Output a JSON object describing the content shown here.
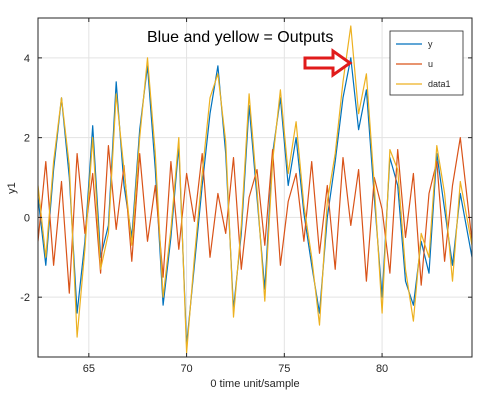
{
  "chart_data": {
    "type": "line",
    "xlabel": "0 time unit/sample",
    "ylabel": "y1",
    "xlim": [
      62.4,
      84.6
    ],
    "ylim": [
      -3.5,
      5.0
    ],
    "xticks": [
      65,
      70,
      75,
      80
    ],
    "yticks": [
      -2,
      0,
      2,
      4
    ],
    "grid": true,
    "legend_position": "top-right",
    "annotation": "Blue and yellow = Outputs",
    "series": [
      {
        "name": "y",
        "color": "#0072bd",
        "x": [
          62.4,
          62.8,
          63.2,
          63.6,
          64.0,
          64.4,
          64.8,
          65.2,
          65.6,
          66.0,
          66.4,
          66.8,
          67.2,
          67.6,
          68.0,
          68.4,
          68.8,
          69.2,
          69.6,
          70.0,
          70.4,
          70.8,
          71.2,
          71.6,
          72.0,
          72.4,
          72.8,
          73.2,
          73.6,
          74.0,
          74.4,
          74.8,
          75.2,
          75.6,
          76.0,
          76.4,
          76.8,
          77.2,
          77.6,
          78.0,
          78.4,
          78.8,
          79.2,
          79.6,
          80.0,
          80.4,
          80.8,
          81.2,
          81.6,
          82.0,
          82.4,
          82.8,
          83.2,
          83.6,
          84.0,
          84.6
        ],
        "values": [
          0.5,
          -1.2,
          1.2,
          3.0,
          1.0,
          -2.4,
          -0.6,
          2.3,
          -1.0,
          -0.2,
          3.4,
          0.8,
          -0.5,
          2.2,
          3.8,
          1.2,
          -2.2,
          -0.5,
          1.8,
          -3.2,
          -1.2,
          0.8,
          2.6,
          3.8,
          1.6,
          -2.3,
          -0.4,
          2.8,
          0.5,
          -1.8,
          1.6,
          3.0,
          0.8,
          2.0,
          0.1,
          -1.2,
          -2.4,
          0.0,
          1.4,
          3.0,
          4.0,
          2.2,
          3.2,
          0.5,
          -2.0,
          1.5,
          0.8,
          -1.6,
          -2.2,
          -0.6,
          -1.4,
          1.6,
          0.2,
          -1.2,
          0.6,
          -1.0
        ]
      },
      {
        "name": "u",
        "color": "#d95319",
        "x": [
          62.4,
          62.8,
          63.2,
          63.6,
          64.0,
          64.4,
          64.8,
          65.2,
          65.6,
          66.0,
          66.4,
          66.8,
          67.2,
          67.6,
          68.0,
          68.4,
          68.8,
          69.2,
          69.6,
          70.0,
          70.4,
          70.8,
          71.2,
          71.6,
          72.0,
          72.4,
          72.8,
          73.2,
          73.6,
          74.0,
          74.4,
          74.8,
          75.2,
          75.6,
          76.0,
          76.4,
          76.8,
          77.2,
          77.6,
          78.0,
          78.4,
          78.8,
          79.2,
          79.6,
          80.0,
          80.4,
          80.8,
          81.2,
          81.6,
          82.0,
          82.4,
          82.8,
          83.2,
          83.6,
          84.0,
          84.6
        ],
        "values": [
          -0.6,
          1.4,
          -1.2,
          0.9,
          -1.9,
          1.6,
          -0.4,
          1.1,
          -1.4,
          1.8,
          -0.3,
          1.3,
          -1.1,
          1.6,
          -0.6,
          0.8,
          -1.5,
          1.4,
          -0.8,
          1.1,
          -0.1,
          1.6,
          -1.0,
          0.6,
          -0.4,
          1.5,
          -1.3,
          0.5,
          1.2,
          -0.7,
          1.7,
          -1.2,
          0.4,
          1.1,
          -0.6,
          1.4,
          -0.9,
          0.8,
          -1.3,
          1.5,
          -0.2,
          1.2,
          -1.6,
          1.0,
          0.2,
          -1.4,
          1.7,
          -0.5,
          1.1,
          -1.7,
          0.6,
          1.4,
          -1.1,
          0.8,
          2.0,
          -0.6
        ]
      },
      {
        "name": "data1",
        "color": "#edb120",
        "x": [
          62.4,
          62.8,
          63.2,
          63.6,
          64.0,
          64.4,
          64.8,
          65.2,
          65.6,
          66.0,
          66.4,
          66.8,
          67.2,
          67.6,
          68.0,
          68.4,
          68.8,
          69.2,
          69.6,
          70.0,
          70.4,
          70.8,
          71.2,
          71.6,
          72.0,
          72.4,
          72.8,
          73.2,
          73.6,
          74.0,
          74.4,
          74.8,
          75.2,
          75.6,
          76.0,
          76.4,
          76.8,
          77.2,
          77.6,
          78.0,
          78.4,
          78.8,
          79.2,
          79.6,
          80.0,
          80.4,
          80.8,
          81.2,
          81.6,
          82.0,
          82.4,
          82.8,
          83.2,
          83.6,
          84.0,
          84.6
        ],
        "values": [
          0.8,
          -1.0,
          1.4,
          3.0,
          1.3,
          -3.0,
          -0.8,
          2.0,
          -1.3,
          -0.4,
          3.1,
          1.2,
          -0.7,
          2.0,
          4.0,
          1.6,
          -2.0,
          -0.3,
          2.0,
          -3.4,
          -1.0,
          1.1,
          3.0,
          3.6,
          1.9,
          -2.5,
          -0.2,
          3.1,
          0.7,
          -2.1,
          1.4,
          3.2,
          1.1,
          2.4,
          0.3,
          -1.0,
          -2.7,
          0.4,
          1.6,
          3.4,
          4.8,
          2.6,
          3.6,
          0.8,
          -2.4,
          1.7,
          1.2,
          -1.3,
          -2.6,
          -0.4,
          -1.0,
          1.8,
          0.6,
          -1.6,
          0.9,
          -0.7
        ]
      }
    ]
  }
}
